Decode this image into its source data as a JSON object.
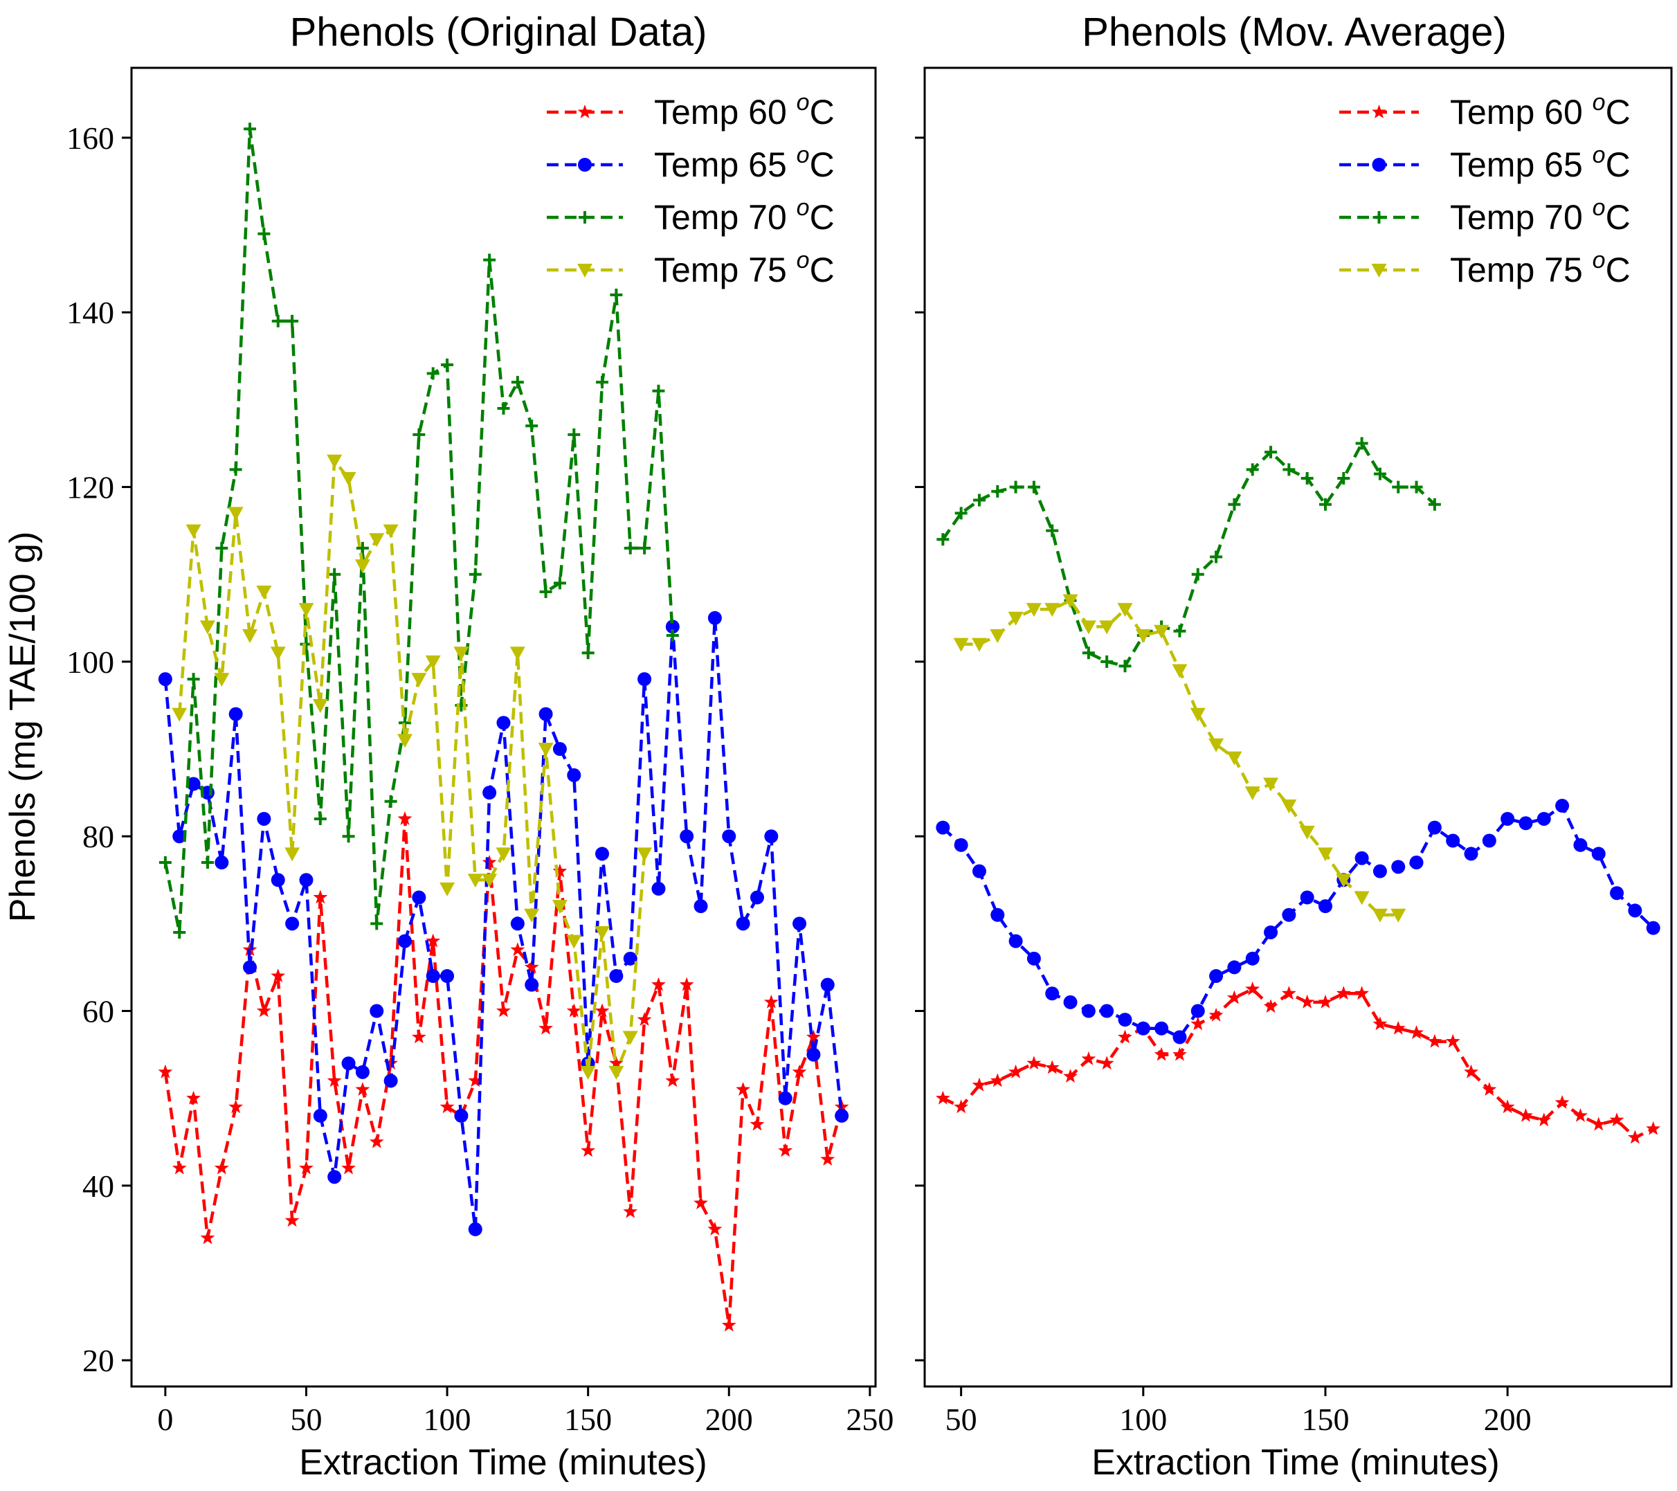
{
  "chart_data": [
    {
      "type": "line",
      "title": "Phenols (Original Data)",
      "xlabel": "Extraction Time (minutes)",
      "ylabel": "Phenols (mg TAE/100 g)",
      "xlim": [
        -12,
        252
      ],
      "ylim": [
        17,
        168
      ],
      "xticks": [
        0,
        50,
        100,
        150,
        200,
        250
      ],
      "yticks": [
        20,
        40,
        60,
        80,
        100,
        120,
        140,
        160
      ],
      "show_yticklabels": true,
      "legend": "top-right",
      "grid": false,
      "series": [
        {
          "name": "Temp 60 oC",
          "label_base": "Temp 60 ",
          "label_sup": "o",
          "label_unit": "C",
          "color": "#ff0000",
          "marker": "star",
          "x": [
            0,
            5,
            10,
            15,
            20,
            25,
            30,
            35,
            40,
            45,
            50,
            55,
            60,
            65,
            70,
            75,
            80,
            85,
            90,
            95,
            100,
            105,
            110,
            115,
            120,
            125,
            130,
            135,
            140,
            145,
            150,
            155,
            160,
            165,
            170,
            175,
            180,
            185,
            190,
            195,
            200,
            205,
            210,
            215,
            220,
            225,
            230,
            235,
            240
          ],
          "y": [
            53,
            42,
            50,
            34,
            42,
            49,
            67,
            60,
            64,
            36,
            42,
            73,
            52,
            42,
            51,
            45,
            54,
            82,
            57,
            68,
            49,
            48,
            52,
            77,
            60,
            67,
            65,
            58,
            76,
            60,
            44,
            60,
            54,
            37,
            59,
            63,
            52,
            63,
            38,
            35,
            24,
            51,
            47,
            61,
            44,
            53,
            57,
            43,
            49
          ]
        },
        {
          "name": "Temp 65 oC",
          "label_base": "Temp 65 ",
          "label_sup": "o",
          "label_unit": "C",
          "color": "#0000ff",
          "marker": "circle",
          "x": [
            0,
            5,
            10,
            15,
            20,
            25,
            30,
            35,
            40,
            45,
            50,
            55,
            60,
            65,
            70,
            75,
            80,
            85,
            90,
            95,
            100,
            105,
            110,
            115,
            120,
            125,
            130,
            135,
            140,
            145,
            150,
            155,
            160,
            165,
            170,
            175,
            180,
            185,
            190,
            195,
            200,
            205,
            210,
            215,
            220,
            225,
            230,
            235,
            240
          ],
          "y": [
            98,
            80,
            86,
            85,
            77,
            94,
            65,
            82,
            75,
            70,
            75,
            48,
            41,
            54,
            53,
            60,
            52,
            68,
            73,
            64,
            64,
            48,
            35,
            85,
            93,
            70,
            63,
            94,
            90,
            87,
            54,
            78,
            64,
            66,
            98,
            74,
            104,
            80,
            72,
            105,
            80,
            70,
            73,
            80,
            50,
            70,
            55,
            63,
            48
          ]
        },
        {
          "name": "Temp 70 oC",
          "label_base": "Temp 70 ",
          "label_sup": "o",
          "label_unit": "C",
          "color": "#008000",
          "marker": "plus",
          "x": [
            0,
            5,
            10,
            15,
            20,
            25,
            30,
            35,
            40,
            45,
            50,
            55,
            60,
            65,
            70,
            75,
            80,
            85,
            90,
            95,
            100,
            105,
            110,
            115,
            120,
            125,
            130,
            135,
            140,
            145,
            150,
            155,
            160,
            165,
            170,
            175,
            180
          ],
          "y": [
            77,
            69,
            98,
            77,
            113,
            122,
            161,
            149,
            139,
            139,
            102,
            82,
            110,
            80,
            113,
            70,
            84,
            93,
            126,
            133,
            134,
            95,
            110,
            146,
            129,
            132,
            127,
            108,
            109,
            126,
            101,
            132,
            142,
            113,
            113,
            131,
            103
          ]
        },
        {
          "name": "Temp 75 oC",
          "label_base": "Temp 75 ",
          "label_sup": "o",
          "label_unit": "C",
          "color": "#bfbf00",
          "marker": "triangle-down",
          "x": [
            0,
            5,
            10,
            15,
            20,
            25,
            30,
            35,
            40,
            45,
            50,
            55,
            60,
            65,
            70,
            75,
            80,
            85,
            90,
            95,
            100,
            105,
            110,
            115,
            120,
            125,
            130,
            135,
            140,
            145,
            150,
            155,
            160,
            165,
            170
          ],
          "y": [
            null,
            94,
            115,
            104,
            98,
            117,
            103,
            108,
            101,
            78,
            106,
            95,
            123,
            121,
            111,
            114,
            115,
            91,
            98,
            100,
            74,
            101,
            75,
            75,
            78,
            101,
            71,
            90,
            72,
            68,
            53,
            69,
            53,
            57,
            78
          ]
        }
      ]
    },
    {
      "type": "line",
      "title": "Phenols (Mov. Average)",
      "xlabel": "Extraction Time (minutes)",
      "ylabel": "",
      "xlim": [
        40,
        245
      ],
      "ylim": [
        17,
        168
      ],
      "xticks": [
        50,
        100,
        150,
        200
      ],
      "yticks": [
        20,
        40,
        60,
        80,
        100,
        120,
        140,
        160
      ],
      "show_yticklabels": false,
      "legend": "top-right",
      "grid": false,
      "series": [
        {
          "name": "Temp 60 oC",
          "label_base": "Temp 60 ",
          "label_sup": "o",
          "label_unit": "C",
          "color": "#ff0000",
          "marker": "star",
          "x": [
            45,
            50,
            55,
            60,
            65,
            70,
            75,
            80,
            85,
            90,
            95,
            100,
            105,
            110,
            115,
            120,
            125,
            130,
            135,
            140,
            145,
            150,
            155,
            160,
            165,
            170,
            175,
            180,
            185,
            190,
            195,
            200,
            205,
            210,
            215,
            220,
            225,
            230,
            235,
            240
          ],
          "y": [
            50,
            49,
            51.5,
            52,
            53,
            54,
            53.5,
            52.5,
            54.5,
            54,
            57,
            58,
            55,
            55,
            58.5,
            59.5,
            61.5,
            62.5,
            60.5,
            62,
            61,
            61,
            62,
            62,
            58.5,
            58,
            57.5,
            56.5,
            56.5,
            53,
            51,
            49,
            48,
            47.5,
            49.5,
            48,
            47,
            47.5,
            45.5,
            46.5
          ]
        },
        {
          "name": "Temp 65 oC",
          "label_base": "Temp 65 ",
          "label_sup": "o",
          "label_unit": "C",
          "color": "#0000ff",
          "marker": "circle",
          "x": [
            45,
            50,
            55,
            60,
            65,
            70,
            75,
            80,
            85,
            90,
            95,
            100,
            105,
            110,
            115,
            120,
            125,
            130,
            135,
            140,
            145,
            150,
            155,
            160,
            165,
            170,
            175,
            180,
            185,
            190,
            195,
            200,
            205,
            210,
            215,
            220,
            225,
            230,
            235,
            240
          ],
          "y": [
            81,
            79,
            76,
            71,
            68,
            66,
            62,
            61,
            60,
            60,
            59,
            58,
            58,
            57,
            60,
            64,
            65,
            66,
            69,
            71,
            73,
            72,
            75,
            77.5,
            76,
            76.5,
            77,
            81,
            79.5,
            78,
            79.5,
            82,
            81.5,
            82,
            83.5,
            79,
            78,
            73.5,
            71.5,
            69.5
          ]
        },
        {
          "name": "Temp 70 oC",
          "label_base": "Temp 70 ",
          "label_sup": "o",
          "label_unit": "C",
          "color": "#008000",
          "marker": "plus",
          "x": [
            45,
            50,
            55,
            60,
            65,
            70,
            75,
            80,
            85,
            90,
            95,
            100,
            105,
            110,
            115,
            120,
            125,
            130,
            135,
            140,
            145,
            150,
            155,
            160,
            165,
            170,
            175,
            180
          ],
          "y": [
            114,
            117,
            118.5,
            119.5,
            120,
            120,
            115,
            107,
            101,
            100,
            99.5,
            103,
            104,
            103.5,
            110,
            112,
            118,
            122,
            124,
            122,
            121,
            118,
            121,
            125,
            121.5,
            120,
            120,
            118
          ]
        },
        {
          "name": "Temp 75 oC",
          "label_base": "Temp 75 ",
          "label_sup": "o",
          "label_unit": "C",
          "color": "#bfbf00",
          "marker": "triangle-down",
          "x": [
            50,
            55,
            60,
            65,
            70,
            75,
            80,
            85,
            90,
            95,
            100,
            105,
            110,
            115,
            120,
            125,
            130,
            135,
            140,
            145,
            150,
            155,
            160,
            165,
            170
          ],
          "y": [
            102,
            102,
            103,
            105,
            106,
            106,
            107,
            104,
            104,
            106,
            103,
            103.5,
            99,
            94,
            90.5,
            89,
            85,
            86,
            83.5,
            80.5,
            78,
            75,
            73,
            71,
            71
          ]
        }
      ]
    }
  ]
}
